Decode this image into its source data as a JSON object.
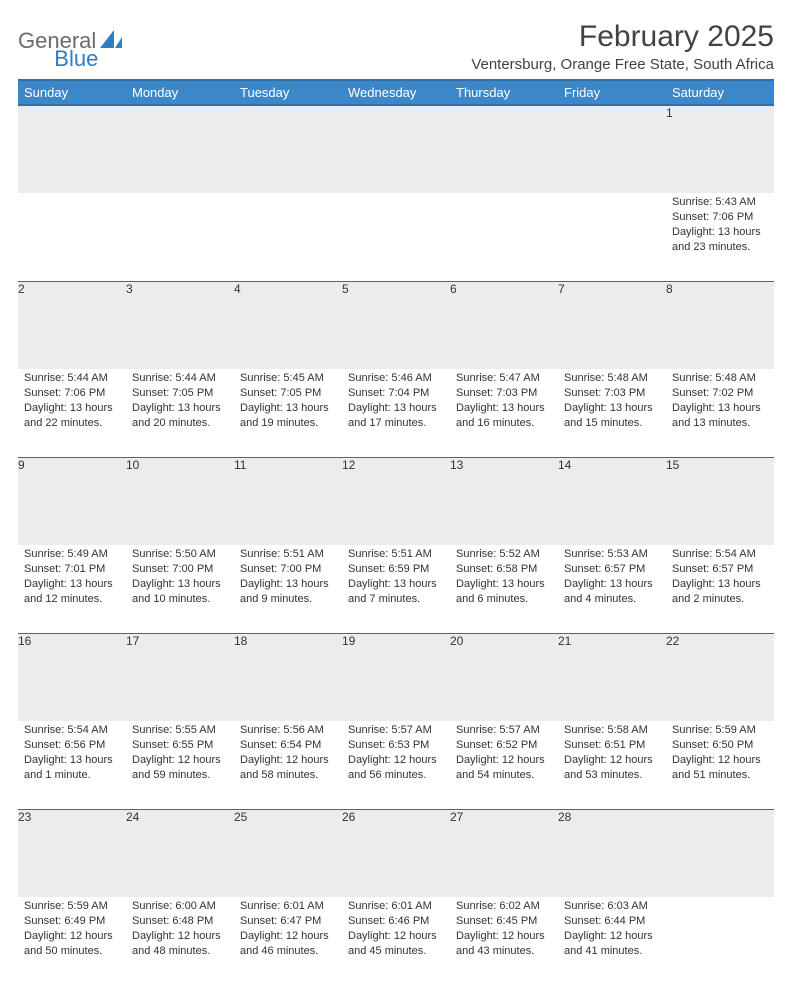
{
  "brand": {
    "part1": "General",
    "part2": "Blue"
  },
  "title": "February 2025",
  "location": "Ventersburg, Orange Free State, South Africa",
  "colors": {
    "header_bg": "#3b87c8",
    "header_border": "#2f6ea8",
    "daynum_bg": "#ececec",
    "text": "#333333",
    "brand_gray": "#6b6b6b",
    "brand_blue": "#2f7cc4"
  },
  "day_headers": [
    "Sunday",
    "Monday",
    "Tuesday",
    "Wednesday",
    "Thursday",
    "Friday",
    "Saturday"
  ],
  "weeks": [
    {
      "nums": [
        "",
        "",
        "",
        "",
        "",
        "",
        "1"
      ],
      "cells": [
        null,
        null,
        null,
        null,
        null,
        null,
        {
          "sunrise": "Sunrise: 5:43 AM",
          "sunset": "Sunset: 7:06 PM",
          "daylight": "Daylight: 13 hours and 23 minutes."
        }
      ]
    },
    {
      "nums": [
        "2",
        "3",
        "4",
        "5",
        "6",
        "7",
        "8"
      ],
      "cells": [
        {
          "sunrise": "Sunrise: 5:44 AM",
          "sunset": "Sunset: 7:06 PM",
          "daylight": "Daylight: 13 hours and 22 minutes."
        },
        {
          "sunrise": "Sunrise: 5:44 AM",
          "sunset": "Sunset: 7:05 PM",
          "daylight": "Daylight: 13 hours and 20 minutes."
        },
        {
          "sunrise": "Sunrise: 5:45 AM",
          "sunset": "Sunset: 7:05 PM",
          "daylight": "Daylight: 13 hours and 19 minutes."
        },
        {
          "sunrise": "Sunrise: 5:46 AM",
          "sunset": "Sunset: 7:04 PM",
          "daylight": "Daylight: 13 hours and 17 minutes."
        },
        {
          "sunrise": "Sunrise: 5:47 AM",
          "sunset": "Sunset: 7:03 PM",
          "daylight": "Daylight: 13 hours and 16 minutes."
        },
        {
          "sunrise": "Sunrise: 5:48 AM",
          "sunset": "Sunset: 7:03 PM",
          "daylight": "Daylight: 13 hours and 15 minutes."
        },
        {
          "sunrise": "Sunrise: 5:48 AM",
          "sunset": "Sunset: 7:02 PM",
          "daylight": "Daylight: 13 hours and 13 minutes."
        }
      ]
    },
    {
      "nums": [
        "9",
        "10",
        "11",
        "12",
        "13",
        "14",
        "15"
      ],
      "cells": [
        {
          "sunrise": "Sunrise: 5:49 AM",
          "sunset": "Sunset: 7:01 PM",
          "daylight": "Daylight: 13 hours and 12 minutes."
        },
        {
          "sunrise": "Sunrise: 5:50 AM",
          "sunset": "Sunset: 7:00 PM",
          "daylight": "Daylight: 13 hours and 10 minutes."
        },
        {
          "sunrise": "Sunrise: 5:51 AM",
          "sunset": "Sunset: 7:00 PM",
          "daylight": "Daylight: 13 hours and 9 minutes."
        },
        {
          "sunrise": "Sunrise: 5:51 AM",
          "sunset": "Sunset: 6:59 PM",
          "daylight": "Daylight: 13 hours and 7 minutes."
        },
        {
          "sunrise": "Sunrise: 5:52 AM",
          "sunset": "Sunset: 6:58 PM",
          "daylight": "Daylight: 13 hours and 6 minutes."
        },
        {
          "sunrise": "Sunrise: 5:53 AM",
          "sunset": "Sunset: 6:57 PM",
          "daylight": "Daylight: 13 hours and 4 minutes."
        },
        {
          "sunrise": "Sunrise: 5:54 AM",
          "sunset": "Sunset: 6:57 PM",
          "daylight": "Daylight: 13 hours and 2 minutes."
        }
      ]
    },
    {
      "nums": [
        "16",
        "17",
        "18",
        "19",
        "20",
        "21",
        "22"
      ],
      "cells": [
        {
          "sunrise": "Sunrise: 5:54 AM",
          "sunset": "Sunset: 6:56 PM",
          "daylight": "Daylight: 13 hours and 1 minute."
        },
        {
          "sunrise": "Sunrise: 5:55 AM",
          "sunset": "Sunset: 6:55 PM",
          "daylight": "Daylight: 12 hours and 59 minutes."
        },
        {
          "sunrise": "Sunrise: 5:56 AM",
          "sunset": "Sunset: 6:54 PM",
          "daylight": "Daylight: 12 hours and 58 minutes."
        },
        {
          "sunrise": "Sunrise: 5:57 AM",
          "sunset": "Sunset: 6:53 PM",
          "daylight": "Daylight: 12 hours and 56 minutes."
        },
        {
          "sunrise": "Sunrise: 5:57 AM",
          "sunset": "Sunset: 6:52 PM",
          "daylight": "Daylight: 12 hours and 54 minutes."
        },
        {
          "sunrise": "Sunrise: 5:58 AM",
          "sunset": "Sunset: 6:51 PM",
          "daylight": "Daylight: 12 hours and 53 minutes."
        },
        {
          "sunrise": "Sunrise: 5:59 AM",
          "sunset": "Sunset: 6:50 PM",
          "daylight": "Daylight: 12 hours and 51 minutes."
        }
      ]
    },
    {
      "nums": [
        "23",
        "24",
        "25",
        "26",
        "27",
        "28",
        ""
      ],
      "cells": [
        {
          "sunrise": "Sunrise: 5:59 AM",
          "sunset": "Sunset: 6:49 PM",
          "daylight": "Daylight: 12 hours and 50 minutes."
        },
        {
          "sunrise": "Sunrise: 6:00 AM",
          "sunset": "Sunset: 6:48 PM",
          "daylight": "Daylight: 12 hours and 48 minutes."
        },
        {
          "sunrise": "Sunrise: 6:01 AM",
          "sunset": "Sunset: 6:47 PM",
          "daylight": "Daylight: 12 hours and 46 minutes."
        },
        {
          "sunrise": "Sunrise: 6:01 AM",
          "sunset": "Sunset: 6:46 PM",
          "daylight": "Daylight: 12 hours and 45 minutes."
        },
        {
          "sunrise": "Sunrise: 6:02 AM",
          "sunset": "Sunset: 6:45 PM",
          "daylight": "Daylight: 12 hours and 43 minutes."
        },
        {
          "sunrise": "Sunrise: 6:03 AM",
          "sunset": "Sunset: 6:44 PM",
          "daylight": "Daylight: 12 hours and 41 minutes."
        },
        null
      ]
    }
  ]
}
